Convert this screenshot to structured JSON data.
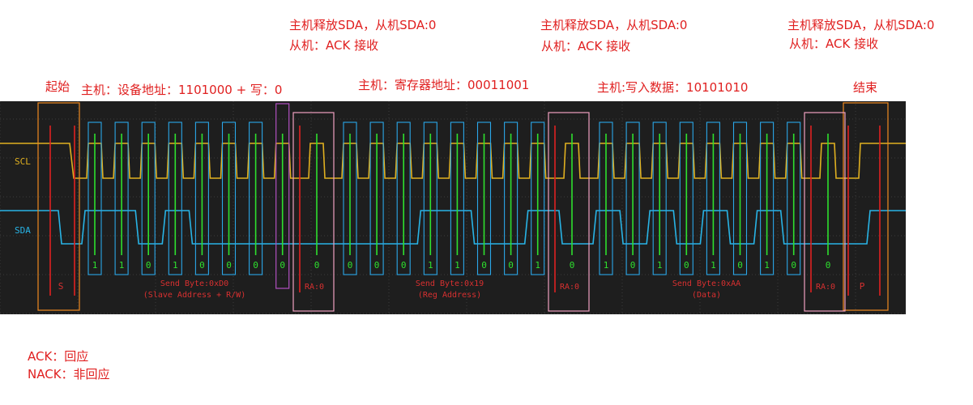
{
  "annotations": {
    "start": "起始",
    "stop": "结束",
    "addr_cmd": "主机：设备地址：1101000 + 写：0",
    "reg_cmd": "主机：寄存器地址：00011001",
    "data_cmd": "主机:写入数据：10101010",
    "release": "主机释放SDA，从机SDA:0",
    "slave_ack": "从机：ACK 接收",
    "legend_ack": "ACK：回应",
    "legend_nack": "NACK：非回应"
  },
  "scope": {
    "ch_scl": "SCL",
    "ch_sda": "SDA",
    "start_marker": "S",
    "stop_marker": "P",
    "ack_label": "RA:0",
    "bytes": [
      {
        "bits": [
          "1",
          "1",
          "0",
          "1",
          "0",
          "0",
          "0",
          "0"
        ],
        "title": "Send Byte:0xD0",
        "sub": "(Slave Address + R/W)"
      },
      {
        "bits": [
          "0",
          "0",
          "0",
          "1",
          "1",
          "0",
          "0",
          "1"
        ],
        "title": "Send Byte:0x19",
        "sub": "(Reg Address)"
      },
      {
        "bits": [
          "1",
          "0",
          "1",
          "0",
          "1",
          "0",
          "1",
          "0"
        ],
        "title": "Send Byte:0xAA",
        "sub": "(Data)"
      }
    ],
    "ack_bit": "0"
  },
  "colors": {
    "background": "#1e1e1e",
    "grid": "#3c3c3c",
    "scl": "#e0b020",
    "sda": "#28b4e6",
    "sample": "#2ee02e",
    "box_bit": "#2aa7e8",
    "box_ack": "#f0a0c0",
    "box_start": "#f08a20",
    "box_rw": "#b050c0",
    "marker": "#e02020",
    "decode": "#d83030",
    "annotation": "#e02020"
  }
}
